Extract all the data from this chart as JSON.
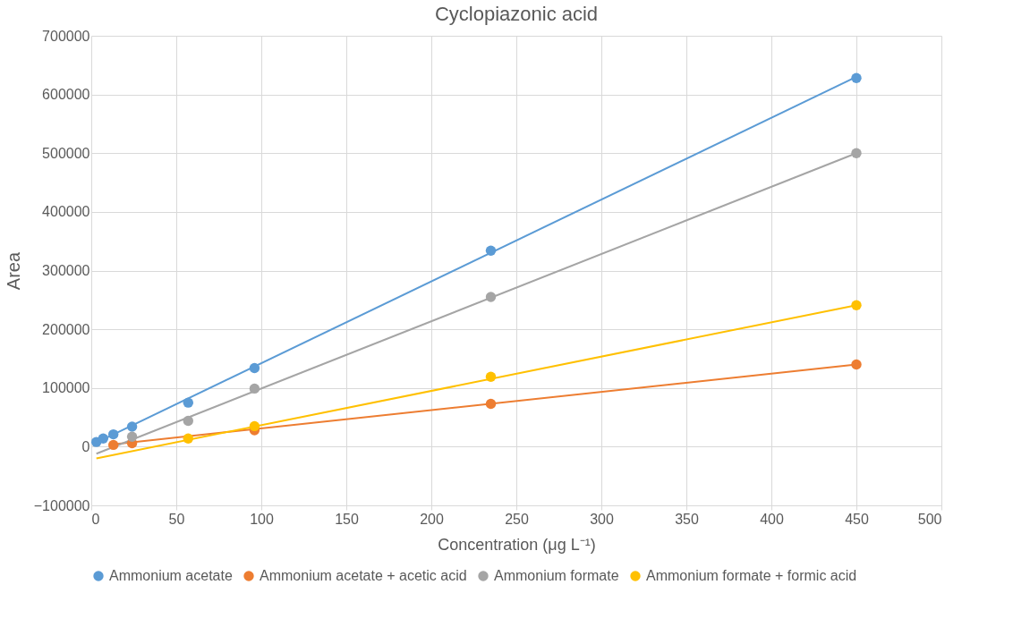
{
  "chart_data": {
    "type": "scatter",
    "title": "Cyclopiazonic acid",
    "xlabel": "Concentration (μg L⁻¹)",
    "ylabel": "Area",
    "xlim": [
      0,
      500
    ],
    "xticks": [
      0,
      50,
      100,
      150,
      200,
      250,
      300,
      350,
      400,
      450,
      500
    ],
    "ylim": [
      -100000,
      700000
    ],
    "yticks": [
      -100000,
      0,
      100000,
      200000,
      300000,
      400000,
      500000,
      600000,
      700000
    ],
    "grid": true,
    "legend": "bottom",
    "marker": "circle",
    "series": [
      {
        "type": "line",
        "marker": "none",
        "color": "#5b9bd5",
        "x": [
          3,
          450
        ],
        "values": [
          7000,
          630000
        ]
      },
      {
        "type": "line",
        "marker": "none",
        "color": "#ed7d31",
        "x": [
          13,
          450
        ],
        "values": [
          4000,
          140000
        ]
      },
      {
        "type": "line",
        "marker": "none",
        "color": "#a5a5a5",
        "x": [
          3,
          450
        ],
        "values": [
          -12000,
          500000
        ]
      },
      {
        "type": "line",
        "marker": "none",
        "color": "#ffc000",
        "x": [
          3,
          450
        ],
        "values": [
          -20000,
          241000
        ]
      },
      {
        "name": "Ammonium acetate",
        "color": "#5b9bd5",
        "x": [
          3,
          7,
          13,
          24,
          57,
          96,
          235,
          450
        ],
        "values": [
          8000,
          14000,
          21000,
          34000,
          75000,
          134000,
          334000,
          628000
        ]
      },
      {
        "name": "Ammonium acetate + acetic acid",
        "color": "#ed7d31",
        "x": [
          13,
          24,
          96,
          235,
          450
        ],
        "values": [
          3000,
          6000,
          28000,
          73000,
          140000
        ]
      },
      {
        "name": "Ammonium formate",
        "color": "#a5a5a5",
        "x": [
          24,
          57,
          96,
          235,
          450
        ],
        "values": [
          17000,
          44000,
          99000,
          255000,
          500000
        ]
      },
      {
        "name": "Ammonium formate + formic acid",
        "color": "#ffc000",
        "x": [
          57,
          96,
          235,
          450
        ],
        "values": [
          14000,
          35000,
          119000,
          241000
        ]
      }
    ]
  }
}
